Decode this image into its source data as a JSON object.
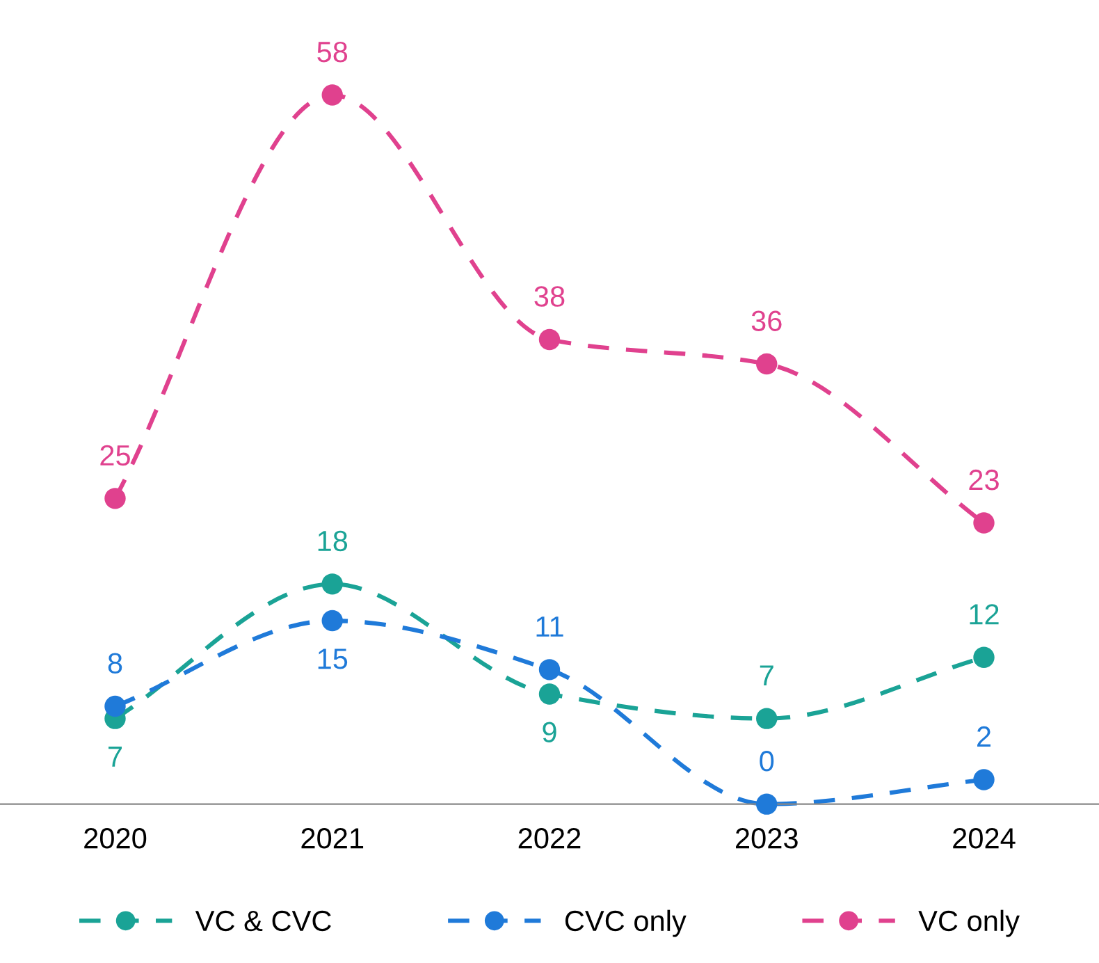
{
  "chart_data": {
    "type": "line",
    "categories": [
      "2020",
      "2021",
      "2022",
      "2023",
      "2024"
    ],
    "series": [
      {
        "name": "VC & CVC",
        "color": "#1aa396",
        "values": [
          7,
          18,
          9,
          7,
          12
        ]
      },
      {
        "name": "CVC only",
        "color": "#1f7ad9",
        "values": [
          8,
          15,
          11,
          0,
          2
        ]
      },
      {
        "name": "VC only",
        "color": "#e0418e",
        "values": [
          25,
          58,
          38,
          36,
          23
        ]
      }
    ],
    "data_labels": true,
    "marker": "circle",
    "line_style": "dashed",
    "grid": false,
    "legend": "bottom"
  }
}
